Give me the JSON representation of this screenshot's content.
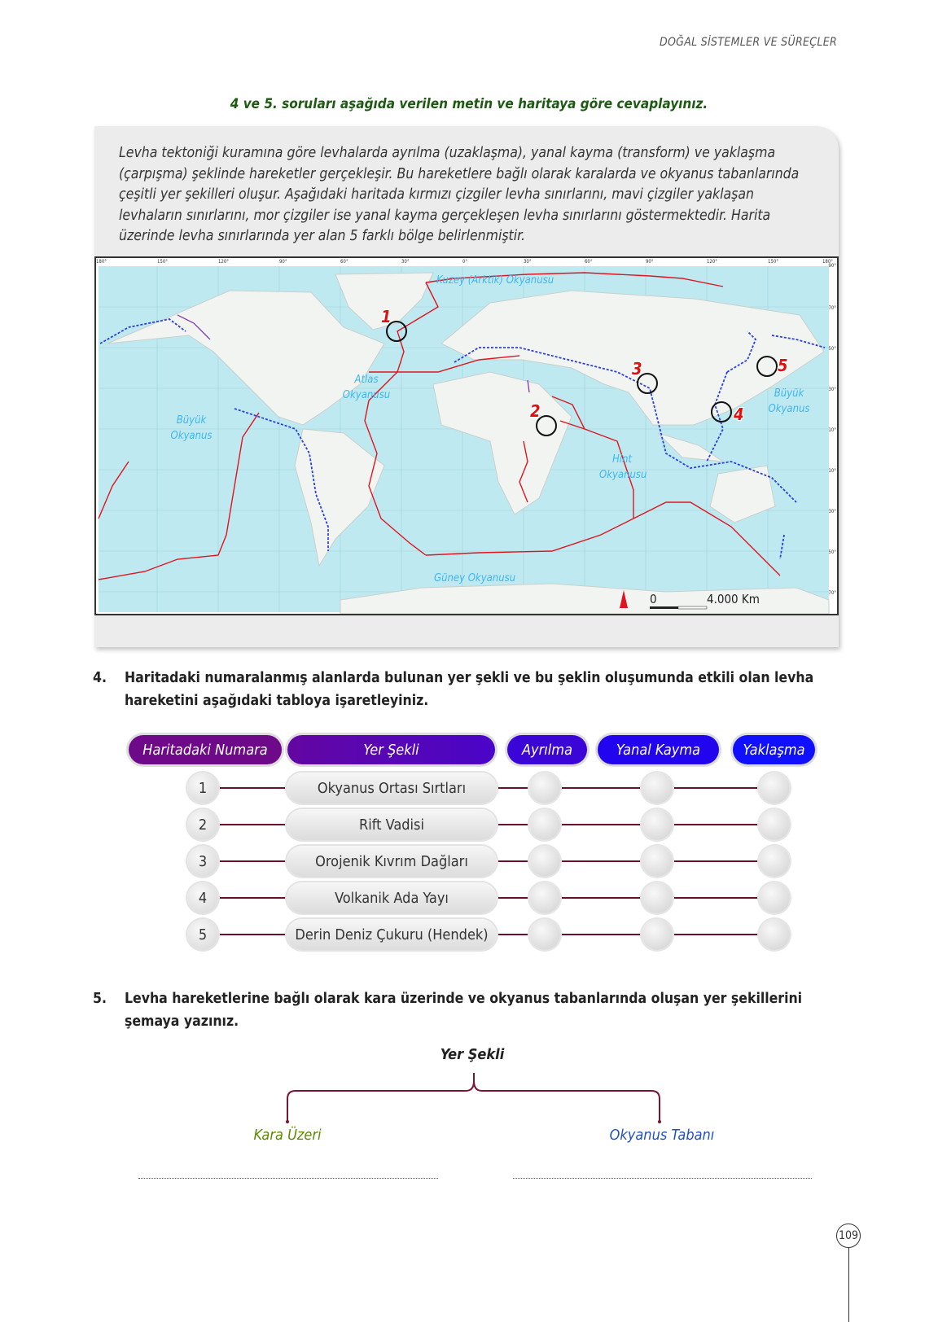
{
  "header": "DOĞAL SİSTEMLER VE SÜREÇLER",
  "instruction": "4 ve 5. soruları aşağıda verilen metin ve haritaya göre cevaplayınız.",
  "paragraph": "Levha tektoniği kuramına göre levhalarda ayrılma (uzaklaşma), yanal kayma (transform) ve yaklaşma (çarpışma) şeklinde hareketler gerçekleşir. Bu hareketlere bağlı olarak karalarda ve okyanus tabanlarında çeşitli yer şekilleri oluşur. Aşağıdaki haritada kırmızı çizgiler levha sınırlarını, mavi çizgiler yaklaşan levhaların sınırlarını, mor çizgiler ise yanal kayma gerçekleşen levha sınırlarını göstermektedir. Harita üzerinde levha sınırlarında yer alan 5 farklı bölge belirlenmiştir.",
  "map": {
    "longitudes": [
      "180°",
      "150°",
      "120°",
      "90°",
      "60°",
      "30°",
      "0°",
      "30°",
      "60°",
      "90°",
      "120°",
      "150°",
      "180°"
    ],
    "latitudes": [
      "90°",
      "70°",
      "50°",
      "30°",
      "10°",
      "10°",
      "30°",
      "50°",
      "70°"
    ],
    "labels": {
      "arctic": "Kuzey (Arktik) Okyanusu",
      "atlantic": "Atlas Okyanusu",
      "pacific_w": "Büyük Okyanus",
      "pacific_e": "Büyük Okyanus",
      "indian": "Hint Okyanusu",
      "southern": "Güney Okyanusu"
    },
    "markers": [
      "1",
      "2",
      "3",
      "4",
      "5"
    ],
    "scale": {
      "start": "0",
      "end": "4.000 Km"
    },
    "colors": {
      "ocean": "#bfe9f0",
      "boundary": "#e0141e",
      "convergent": "#2a3fe0",
      "transform": "#7a2aa8"
    }
  },
  "q4": {
    "number": "4.",
    "text": "Haritadaki numaralanmış alanlarda bulunan yer şekli ve bu şeklin oluşumunda etkili olan levha hareketini aşağıdaki tabloya işaretleyiniz."
  },
  "table": {
    "headers": [
      "Haritadaki Numara",
      "Yer Şekli",
      "Ayrılma",
      "Yanal Kayma",
      "Yaklaşma"
    ],
    "rows": [
      {
        "num": "1",
        "shape": "Okyanus Ortası Sırtları"
      },
      {
        "num": "2",
        "shape": "Rift Vadisi"
      },
      {
        "num": "3",
        "shape": "Orojenik Kıvrım Dağları"
      },
      {
        "num": "4",
        "shape": "Volkanik Ada Yayı"
      },
      {
        "num": "5",
        "shape": "Derin Deniz Çukuru (Hendek)"
      }
    ]
  },
  "q5": {
    "number": "5.",
    "text": "Levha hareketlerine bağlı olarak kara üzerinde ve okyanus tabanlarında oluşan yer şekillerini şemaya yazınız."
  },
  "schema": {
    "root": "Yer Şekli",
    "left": "Kara Üzeri",
    "right": "Okyanus Tabanı",
    "left_color": "#5a8a00",
    "right_color": "#2050c0"
  },
  "page_number": "109"
}
